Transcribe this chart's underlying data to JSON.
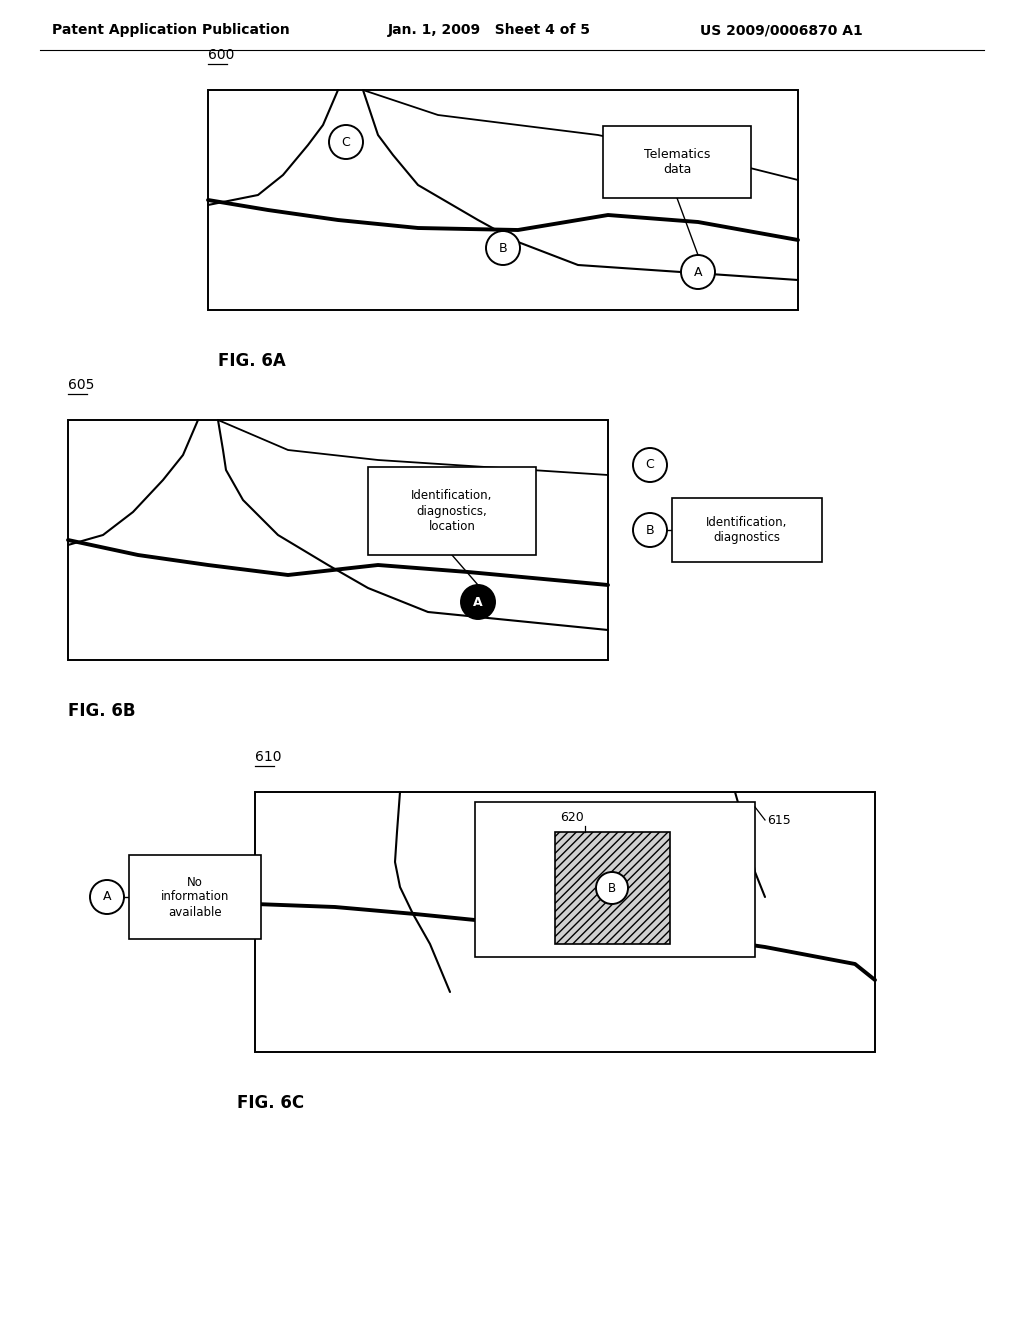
{
  "bg_color": "#ffffff",
  "header_text": "Patent Application Publication",
  "header_date": "Jan. 1, 2009   Sheet 4 of 5",
  "header_patent": "US 2009/0006870 A1",
  "fig6a_label": "600",
  "fig6a_caption": "FIG. 6A",
  "fig6b_label": "605",
  "fig6b_caption": "FIG. 6B",
  "fig6c_label": "610",
  "fig6c_caption": "FIG. 6C",
  "fig6c_sub615": "615",
  "fig6c_sub620": "620"
}
